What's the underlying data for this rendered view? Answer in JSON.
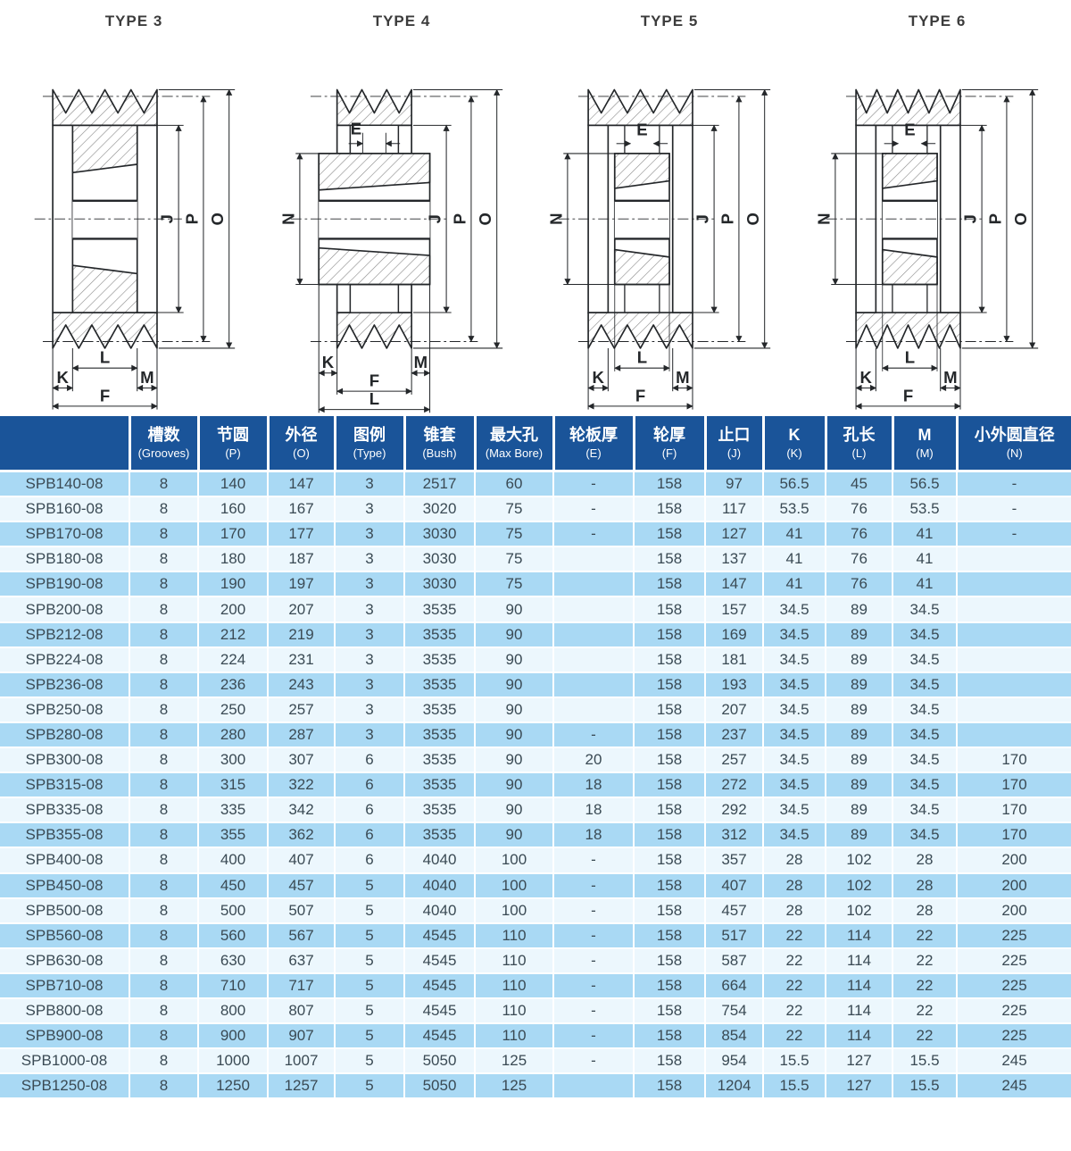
{
  "colors": {
    "header_bg": "#1a5499",
    "row_dark_bg": "#a9d9f4",
    "row_light_bg": "#ecf7fd",
    "header_text": "#ffffff",
    "cell_text": "#3a4a54",
    "line": "#24272a",
    "hatch": "#8a8a8a",
    "diagram_title_text": "#3c3c3c"
  },
  "diagrams": [
    {
      "title": "TYPE 3",
      "variant": "solid",
      "teeth": 4,
      "labels": {
        "right": [
          "J",
          "P",
          "O"
        ],
        "bottom_inner": "L",
        "bottom_left": "K",
        "bottom_right": "M",
        "bottom_full": "F"
      }
    },
    {
      "title": "TYPE 4",
      "variant": "wide-hub",
      "teeth": 3,
      "labels": {
        "right": [
          "J",
          "P",
          "O"
        ],
        "left": "N",
        "web": "E",
        "bottom_inner": "L",
        "bottom_left": "K",
        "bottom_right": "M",
        "bottom_full": "F"
      }
    },
    {
      "title": "TYPE 5",
      "variant": "inset-hub",
      "teeth": 4,
      "labels": {
        "right": [
          "J",
          "P",
          "O"
        ],
        "left": "N",
        "web": "E",
        "bottom_inner": "L",
        "bottom_left": "K",
        "bottom_right": "M",
        "bottom_full": "F"
      }
    },
    {
      "title": "TYPE 6",
      "variant": "inset-hub",
      "teeth": 5,
      "labels": {
        "right": [
          "J",
          "P",
          "O"
        ],
        "left": "N",
        "web": "E",
        "bottom_inner": "L",
        "bottom_left": "K",
        "bottom_right": "M",
        "bottom_full": "F"
      }
    }
  ],
  "table": {
    "columns": [
      {
        "zh": "",
        "en": ""
      },
      {
        "zh": "槽数",
        "en": "(Grooves)"
      },
      {
        "zh": "节圆",
        "en": "(P)"
      },
      {
        "zh": "外径",
        "en": "(O)"
      },
      {
        "zh": "图例",
        "en": "(Type)"
      },
      {
        "zh": "锥套",
        "en": "(Bush)"
      },
      {
        "zh": "最大孔",
        "en": "(Max Bore)"
      },
      {
        "zh": "轮板厚",
        "en": "(E)"
      },
      {
        "zh": "轮厚",
        "en": "(F)"
      },
      {
        "zh": "止口",
        "en": "(J)"
      },
      {
        "zh": "K",
        "en": "(K)"
      },
      {
        "zh": "孔长",
        "en": "(L)"
      },
      {
        "zh": "M",
        "en": "(M)"
      },
      {
        "zh": "小外圆直径",
        "en": "(N)"
      }
    ],
    "rows": [
      [
        "SPB140-08",
        "8",
        "140",
        "147",
        "3",
        "2517",
        "60",
        "-",
        "158",
        "97",
        "56.5",
        "45",
        "56.5",
        "-"
      ],
      [
        "SPB160-08",
        "8",
        "160",
        "167",
        "3",
        "3020",
        "75",
        "-",
        "158",
        "117",
        "53.5",
        "76",
        "53.5",
        "-"
      ],
      [
        "SPB170-08",
        "8",
        "170",
        "177",
        "3",
        "3030",
        "75",
        "-",
        "158",
        "127",
        "41",
        "76",
        "41",
        "-"
      ],
      [
        "SPB180-08",
        "8",
        "180",
        "187",
        "3",
        "3030",
        "75",
        "",
        "158",
        "137",
        "41",
        "76",
        "41",
        ""
      ],
      [
        "SPB190-08",
        "8",
        "190",
        "197",
        "3",
        "3030",
        "75",
        "",
        "158",
        "147",
        "41",
        "76",
        "41",
        ""
      ],
      [
        "SPB200-08",
        "8",
        "200",
        "207",
        "3",
        "3535",
        "90",
        "",
        "158",
        "157",
        "34.5",
        "89",
        "34.5",
        ""
      ],
      [
        "SPB212-08",
        "8",
        "212",
        "219",
        "3",
        "3535",
        "90",
        "",
        "158",
        "169",
        "34.5",
        "89",
        "34.5",
        ""
      ],
      [
        "SPB224-08",
        "8",
        "224",
        "231",
        "3",
        "3535",
        "90",
        "",
        "158",
        "181",
        "34.5",
        "89",
        "34.5",
        ""
      ],
      [
        "SPB236-08",
        "8",
        "236",
        "243",
        "3",
        "3535",
        "90",
        "",
        "158",
        "193",
        "34.5",
        "89",
        "34.5",
        ""
      ],
      [
        "SPB250-08",
        "8",
        "250",
        "257",
        "3",
        "3535",
        "90",
        "",
        "158",
        "207",
        "34.5",
        "89",
        "34.5",
        ""
      ],
      [
        "SPB280-08",
        "8",
        "280",
        "287",
        "3",
        "3535",
        "90",
        "-",
        "158",
        "237",
        "34.5",
        "89",
        "34.5",
        ""
      ],
      [
        "SPB300-08",
        "8",
        "300",
        "307",
        "6",
        "3535",
        "90",
        "20",
        "158",
        "257",
        "34.5",
        "89",
        "34.5",
        "170"
      ],
      [
        "SPB315-08",
        "8",
        "315",
        "322",
        "6",
        "3535",
        "90",
        "18",
        "158",
        "272",
        "34.5",
        "89",
        "34.5",
        "170"
      ],
      [
        "SPB335-08",
        "8",
        "335",
        "342",
        "6",
        "3535",
        "90",
        "18",
        "158",
        "292",
        "34.5",
        "89",
        "34.5",
        "170"
      ],
      [
        "SPB355-08",
        "8",
        "355",
        "362",
        "6",
        "3535",
        "90",
        "18",
        "158",
        "312",
        "34.5",
        "89",
        "34.5",
        "170"
      ],
      [
        "SPB400-08",
        "8",
        "400",
        "407",
        "6",
        "4040",
        "100",
        "-",
        "158",
        "357",
        "28",
        "102",
        "28",
        "200"
      ],
      [
        "SPB450-08",
        "8",
        "450",
        "457",
        "5",
        "4040",
        "100",
        "-",
        "158",
        "407",
        "28",
        "102",
        "28",
        "200"
      ],
      [
        "SPB500-08",
        "8",
        "500",
        "507",
        "5",
        "4040",
        "100",
        "-",
        "158",
        "457",
        "28",
        "102",
        "28",
        "200"
      ],
      [
        "SPB560-08",
        "8",
        "560",
        "567",
        "5",
        "4545",
        "110",
        "-",
        "158",
        "517",
        "22",
        "114",
        "22",
        "225"
      ],
      [
        "SPB630-08",
        "8",
        "630",
        "637",
        "5",
        "4545",
        "110",
        "-",
        "158",
        "587",
        "22",
        "114",
        "22",
        "225"
      ],
      [
        "SPB710-08",
        "8",
        "710",
        "717",
        "5",
        "4545",
        "110",
        "-",
        "158",
        "664",
        "22",
        "114",
        "22",
        "225"
      ],
      [
        "SPB800-08",
        "8",
        "800",
        "807",
        "5",
        "4545",
        "110",
        "-",
        "158",
        "754",
        "22",
        "114",
        "22",
        "225"
      ],
      [
        "SPB900-08",
        "8",
        "900",
        "907",
        "5",
        "4545",
        "110",
        "-",
        "158",
        "854",
        "22",
        "114",
        "22",
        "225"
      ],
      [
        "SPB1000-08",
        "8",
        "1000",
        "1007",
        "5",
        "5050",
        "125",
        "-",
        "158",
        "954",
        "15.5",
        "127",
        "15.5",
        "245"
      ],
      [
        "SPB1250-08",
        "8",
        "1250",
        "1257",
        "5",
        "5050",
        "125",
        "",
        "158",
        "1204",
        "15.5",
        "127",
        "15.5",
        "245"
      ]
    ]
  }
}
